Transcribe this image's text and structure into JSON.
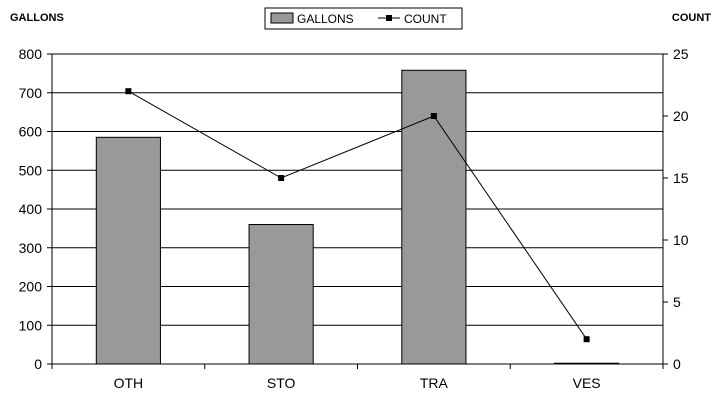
{
  "chart_data": {
    "type": "bar",
    "categories": [
      "OTH",
      "STO",
      "TRA",
      "VES"
    ],
    "series": [
      {
        "name": "GALLONS",
        "type": "bar",
        "axis": "left",
        "values": [
          585,
          360,
          758,
          2
        ]
      },
      {
        "name": "COUNT",
        "type": "line",
        "axis": "right",
        "values": [
          22,
          15,
          20,
          2
        ]
      }
    ],
    "ylabel": "GALLONS",
    "y2label": "COUNT",
    "ylim": [
      0,
      800
    ],
    "y2lim": [
      0,
      25
    ],
    "yticks": [
      "0",
      "100",
      "200",
      "300",
      "400",
      "500",
      "600",
      "700",
      "800"
    ],
    "y2ticks": [
      "0",
      "5",
      "10",
      "15",
      "20",
      "25"
    ],
    "grid": true,
    "legend_position": "top-center",
    "colors": {
      "bar_fill": "#999999",
      "bar_stroke": "#000000",
      "line": "#000000",
      "grid": "#000000"
    }
  }
}
